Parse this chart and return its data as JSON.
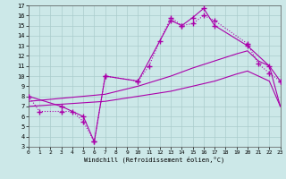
{
  "xlabel": "Windchill (Refroidissement éolien,°C)",
  "background_color": "#cce8e8",
  "grid_color": "#aacccc",
  "line_color": "#aa00aa",
  "xlim": [
    0,
    23
  ],
  "ylim": [
    3,
    17
  ],
  "xticks": [
    0,
    1,
    2,
    3,
    4,
    5,
    6,
    7,
    8,
    9,
    10,
    11,
    12,
    13,
    14,
    15,
    16,
    17,
    18,
    19,
    20,
    21,
    22,
    23
  ],
  "yticks": [
    3,
    4,
    5,
    6,
    7,
    8,
    9,
    10,
    11,
    12,
    13,
    14,
    15,
    16,
    17
  ],
  "dotted_x": [
    0,
    1,
    3,
    4,
    5,
    6,
    7,
    10,
    11,
    12,
    13,
    14,
    15,
    16,
    17,
    20,
    21,
    22,
    23
  ],
  "dotted_y": [
    8,
    6.5,
    6.5,
    6.5,
    5.5,
    3.5,
    10.0,
    9.5,
    11.0,
    13.5,
    15.8,
    15.0,
    15.2,
    16.0,
    15.5,
    13.2,
    11.2,
    10.3,
    9.5
  ],
  "solid_marker_x": [
    0,
    3,
    5,
    6,
    7,
    10,
    13,
    14,
    15,
    16,
    17,
    20,
    22,
    23
  ],
  "solid_marker_y": [
    8,
    7.0,
    6.0,
    3.5,
    10.0,
    9.5,
    15.5,
    15.0,
    15.8,
    16.7,
    15.0,
    13.0,
    11.0,
    9.5
  ],
  "smooth_upper_x": [
    0,
    7,
    10,
    13,
    15,
    17,
    19,
    20,
    21,
    22,
    23
  ],
  "smooth_upper_y": [
    7.5,
    8.2,
    9.0,
    10.0,
    10.8,
    11.5,
    12.2,
    12.5,
    11.5,
    11.0,
    7.0
  ],
  "smooth_lower_x": [
    0,
    7,
    10,
    13,
    15,
    17,
    19,
    20,
    21,
    22,
    23
  ],
  "smooth_lower_y": [
    7.0,
    7.5,
    8.0,
    8.5,
    9.0,
    9.5,
    10.2,
    10.5,
    10.0,
    9.5,
    7.0
  ]
}
